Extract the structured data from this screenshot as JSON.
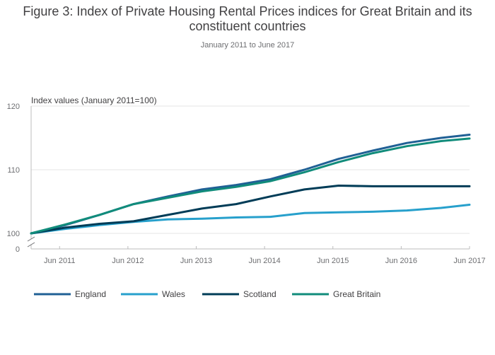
{
  "title": "Figure 3: Index of Private Housing Rental Prices indices for Great Britain and its constituent countries",
  "subtitle": "January 2011 to June 2017",
  "chart_data": {
    "type": "line",
    "ylabel": "Index values (January 2011=100)",
    "xlabel": "",
    "ylim": [
      100,
      120
    ],
    "y_axis_break_label": "0",
    "yticks": [
      100,
      110,
      120
    ],
    "x_range": [
      "2011-01",
      "2017-06"
    ],
    "x_tick_labels": [
      "Jun 2011",
      "Jun 2012",
      "Jun 2013",
      "Jun 2014",
      "Jun 2015",
      "Jun 2016",
      "Jun 2017"
    ],
    "x_tick_dates": [
      "2011-06",
      "2012-06",
      "2013-06",
      "2014-06",
      "2015-06",
      "2016-06",
      "2017-06"
    ],
    "grid": true,
    "legend_position": "bottom",
    "series": [
      {
        "name": "England",
        "color": "#206095",
        "x": [
          "2011-01",
          "2011-07",
          "2012-01",
          "2012-07",
          "2013-01",
          "2013-07",
          "2014-01",
          "2014-07",
          "2015-01",
          "2015-07",
          "2016-01",
          "2016-07",
          "2017-01",
          "2017-06"
        ],
        "values": [
          100.0,
          101.3,
          102.9,
          104.6,
          105.8,
          106.9,
          107.6,
          108.5,
          110.0,
          111.7,
          113.0,
          114.2,
          115.0,
          115.5
        ]
      },
      {
        "name": "Wales",
        "color": "#27a0cc",
        "x": [
          "2011-01",
          "2011-07",
          "2012-01",
          "2012-07",
          "2013-01",
          "2013-07",
          "2014-01",
          "2014-07",
          "2015-01",
          "2015-07",
          "2016-01",
          "2016-07",
          "2017-01",
          "2017-06"
        ],
        "values": [
          100.0,
          100.7,
          101.3,
          101.8,
          102.2,
          102.3,
          102.5,
          102.6,
          103.2,
          103.3,
          103.4,
          103.6,
          104.0,
          104.5
        ]
      },
      {
        "name": "Scotland",
        "color": "#003c57",
        "x": [
          "2011-01",
          "2011-07",
          "2012-01",
          "2012-07",
          "2013-01",
          "2013-07",
          "2014-01",
          "2014-07",
          "2015-01",
          "2015-07",
          "2016-01",
          "2016-07",
          "2017-01",
          "2017-06"
        ],
        "values": [
          100.0,
          100.9,
          101.5,
          101.9,
          102.9,
          103.9,
          104.6,
          105.8,
          106.9,
          107.5,
          107.4,
          107.4,
          107.4,
          107.4
        ]
      },
      {
        "name": "Great Britain",
        "color": "#118c7b",
        "x": [
          "2011-01",
          "2011-07",
          "2012-01",
          "2012-07",
          "2013-01",
          "2013-07",
          "2014-01",
          "2014-07",
          "2015-01",
          "2015-07",
          "2016-01",
          "2016-07",
          "2017-01",
          "2017-06"
        ],
        "values": [
          100.0,
          101.4,
          102.9,
          104.6,
          105.6,
          106.6,
          107.3,
          108.2,
          109.6,
          111.2,
          112.6,
          113.7,
          114.5,
          114.9
        ]
      }
    ]
  }
}
